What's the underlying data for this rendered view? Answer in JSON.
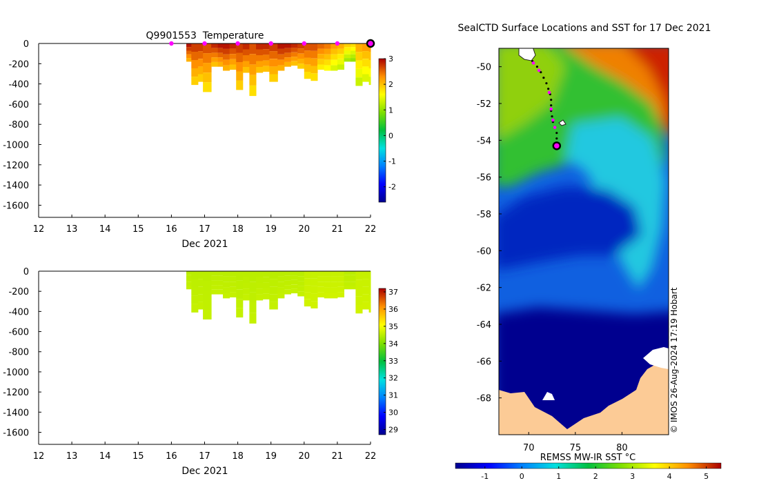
{
  "chart_data": [
    {
      "type": "heatmap",
      "title": "Q9901553  Temperature",
      "xlabel": "Dec 2021",
      "ylabel": "",
      "x_ticks": [
        12,
        13,
        14,
        15,
        16,
        17,
        18,
        19,
        20,
        21,
        22
      ],
      "x_range": [
        12,
        22
      ],
      "y_ticks": [
        0,
        -200,
        -400,
        -600,
        -800,
        -1000,
        -1200,
        -1400,
        -1600
      ],
      "y_range": [
        -1720,
        0
      ],
      "colorbar": {
        "range": [
          -2.6,
          3.0
        ],
        "ticks": [
          -2,
          -1,
          0,
          1,
          2,
          3
        ]
      },
      "profile_days": [
        16,
        17,
        18,
        19,
        20,
        21,
        22
      ],
      "current_profile_day": 22,
      "data_start_day": 16.45,
      "profiles": [
        {
          "x": 16.45,
          "depth": 180,
          "value": 2.4
        },
        {
          "x": 16.6,
          "depth": 410,
          "value": 2.2
        },
        {
          "x": 16.8,
          "depth": 380,
          "value": 2.2
        },
        {
          "x": 16.95,
          "depth": 480,
          "value": 2.1
        },
        {
          "x": 17.2,
          "depth": 230,
          "value": 2.3
        },
        {
          "x": 17.4,
          "depth": 230,
          "value": 2.4
        },
        {
          "x": 17.55,
          "depth": 270,
          "value": 2.4
        },
        {
          "x": 17.75,
          "depth": 260,
          "value": 2.3
        },
        {
          "x": 17.95,
          "depth": 460,
          "value": 2.2
        },
        {
          "x": 18.15,
          "depth": 290,
          "value": 2.3
        },
        {
          "x": 18.35,
          "depth": 520,
          "value": 2.1
        },
        {
          "x": 18.55,
          "depth": 290,
          "value": 2.3
        },
        {
          "x": 18.75,
          "depth": 280,
          "value": 2.3
        },
        {
          "x": 18.95,
          "depth": 380,
          "value": 2.2
        },
        {
          "x": 19.2,
          "depth": 270,
          "value": 2.4
        },
        {
          "x": 19.4,
          "depth": 230,
          "value": 2.4
        },
        {
          "x": 19.6,
          "depth": 220,
          "value": 2.3
        },
        {
          "x": 19.8,
          "depth": 250,
          "value": 2.2
        },
        {
          "x": 20.0,
          "depth": 350,
          "value": 2.1
        },
        {
          "x": 20.2,
          "depth": 370,
          "value": 2.1
        },
        {
          "x": 20.4,
          "depth": 260,
          "value": 2.0
        },
        {
          "x": 20.6,
          "depth": 270,
          "value": 1.9
        },
        {
          "x": 20.8,
          "depth": 270,
          "value": 1.7
        },
        {
          "x": 21.0,
          "depth": 260,
          "value": 1.6
        },
        {
          "x": 21.2,
          "depth": 180,
          "value": 1.4
        },
        {
          "x": 21.4,
          "depth": 180,
          "value": 1.3
        },
        {
          "x": 21.55,
          "depth": 420,
          "value": 1.6
        },
        {
          "x": 21.75,
          "depth": 380,
          "value": 1.7
        },
        {
          "x": 21.95,
          "depth": 410,
          "value": 1.7
        }
      ]
    },
    {
      "type": "heatmap",
      "title": "",
      "xlabel": "Dec 2021",
      "ylabel": "",
      "x_ticks": [
        12,
        13,
        14,
        15,
        16,
        17,
        18,
        19,
        20,
        21,
        22
      ],
      "x_range": [
        12,
        22
      ],
      "y_ticks": [
        0,
        -200,
        -400,
        -600,
        -800,
        -1000,
        -1200,
        -1400,
        -1600
      ],
      "y_range": [
        -1720,
        0
      ],
      "colorbar": {
        "range": [
          28.7,
          37.2
        ],
        "ticks": [
          29,
          30,
          31,
          32,
          33,
          34,
          35,
          36,
          37
        ]
      },
      "profiles": [
        {
          "x": 16.45,
          "depth": 180,
          "value": 34.5
        },
        {
          "x": 16.6,
          "depth": 410,
          "value": 34.5
        },
        {
          "x": 16.8,
          "depth": 380,
          "value": 34.5
        },
        {
          "x": 16.95,
          "depth": 480,
          "value": 34.5
        },
        {
          "x": 17.2,
          "depth": 230,
          "value": 34.5
        },
        {
          "x": 17.4,
          "depth": 230,
          "value": 34.5
        },
        {
          "x": 17.55,
          "depth": 270,
          "value": 34.5
        },
        {
          "x": 17.75,
          "depth": 260,
          "value": 34.5
        },
        {
          "x": 17.95,
          "depth": 460,
          "value": 34.5
        },
        {
          "x": 18.15,
          "depth": 290,
          "value": 34.5
        },
        {
          "x": 18.35,
          "depth": 520,
          "value": 34.5
        },
        {
          "x": 18.55,
          "depth": 290,
          "value": 34.5
        },
        {
          "x": 18.75,
          "depth": 280,
          "value": 34.5
        },
        {
          "x": 18.95,
          "depth": 380,
          "value": 34.5
        },
        {
          "x": 19.2,
          "depth": 270,
          "value": 34.5
        },
        {
          "x": 19.4,
          "depth": 230,
          "value": 34.5
        },
        {
          "x": 19.6,
          "depth": 220,
          "value": 34.5
        },
        {
          "x": 19.8,
          "depth": 250,
          "value": 34.5
        },
        {
          "x": 20.0,
          "depth": 350,
          "value": 34.6
        },
        {
          "x": 20.2,
          "depth": 370,
          "value": 34.6
        },
        {
          "x": 20.4,
          "depth": 260,
          "value": 34.6
        },
        {
          "x": 20.6,
          "depth": 270,
          "value": 34.6
        },
        {
          "x": 20.8,
          "depth": 270,
          "value": 34.6
        },
        {
          "x": 21.0,
          "depth": 260,
          "value": 34.6
        },
        {
          "x": 21.2,
          "depth": 180,
          "value": 34.5
        },
        {
          "x": 21.4,
          "depth": 180,
          "value": 34.5
        },
        {
          "x": 21.55,
          "depth": 420,
          "value": 34.6
        },
        {
          "x": 21.75,
          "depth": 380,
          "value": 34.6
        },
        {
          "x": 21.95,
          "depth": 410,
          "value": 34.6
        }
      ]
    },
    {
      "type": "heatmap",
      "title": "SealCTD Surface Locations and SST for 17 Dec 2021",
      "x_ticks": [
        70,
        75,
        80
      ],
      "x_range": [
        66.8,
        85.0
      ],
      "y_ticks": [
        -50,
        -52,
        -54,
        -56,
        -58,
        -60,
        -62,
        -64,
        -66,
        -68
      ],
      "y_range": [
        -70.0,
        -49.0
      ],
      "colorbar": {
        "label": "REMSS MW-IR SST °C",
        "range": [
          -1.8,
          5.4
        ],
        "ticks": [
          -1,
          0,
          1,
          2,
          3,
          4,
          5
        ]
      },
      "track": [
        {
          "lon": 70.4,
          "lat": -49.7
        },
        {
          "lon": 70.9,
          "lat": -50.0
        },
        {
          "lon": 71.3,
          "lat": -50.3
        },
        {
          "lon": 71.6,
          "lat": -50.6
        },
        {
          "lon": 71.9,
          "lat": -50.9
        },
        {
          "lon": 72.1,
          "lat": -51.2
        },
        {
          "lon": 72.3,
          "lat": -51.5
        },
        {
          "lon": 72.4,
          "lat": -51.8
        },
        {
          "lon": 72.4,
          "lat": -52.1
        },
        {
          "lon": 72.4,
          "lat": -52.4
        },
        {
          "lon": 72.5,
          "lat": -52.7
        },
        {
          "lon": 72.6,
          "lat": -53.0
        },
        {
          "lon": 72.8,
          "lat": -53.3
        },
        {
          "lon": 73.0,
          "lat": -53.6
        },
        {
          "lon": 73.0,
          "lat": -53.9
        }
      ],
      "daily_positions": [
        {
          "lon": 70.5,
          "lat": -49.8
        },
        {
          "lon": 71.1,
          "lat": -50.2
        },
        {
          "lon": 72.2,
          "lat": -51.4
        },
        {
          "lon": 72.4,
          "lat": -52.3
        },
        {
          "lon": 72.6,
          "lat": -52.9
        },
        {
          "lon": 72.8,
          "lat": -53.3
        }
      ],
      "current_position": {
        "lon": 73.0,
        "lat": -54.3
      },
      "credit": "© IMOS 26-Aug-2024 17:19 Hobart"
    }
  ]
}
